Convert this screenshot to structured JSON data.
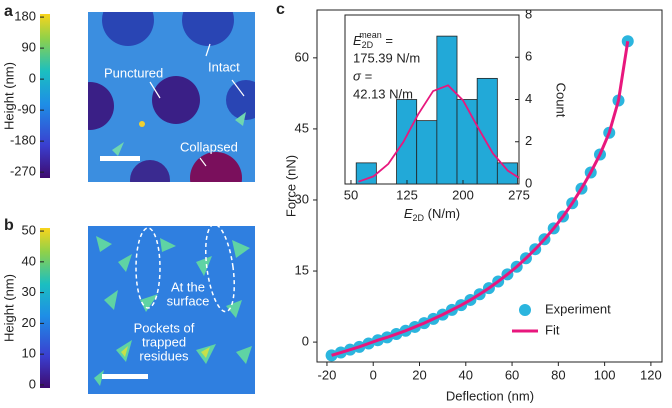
{
  "panel_a": {
    "label": "a",
    "colorbar_label": "Height (nm)",
    "colorbar_lim": [
      -287,
      189
    ],
    "colorbar_ticks": [
      180,
      90,
      0,
      -90,
      -180,
      -270
    ],
    "annotations": [
      "Punctured",
      "Intact",
      "Collapsed"
    ]
  },
  "panel_b": {
    "label": "b",
    "colorbar_label": "Height (nm)",
    "colorbar_lim": [
      -1,
      51
    ],
    "colorbar_ticks": [
      50,
      40,
      30,
      20,
      10,
      0
    ],
    "annotations": [
      [
        "At the",
        "surface"
      ],
      [
        "Pockets of",
        "trapped",
        "residues"
      ]
    ]
  },
  "chart_data": [
    {
      "type": "scatter",
      "panel_label": "c",
      "xlabel": "Deflection (nm)",
      "ylabel": "Force (nN)",
      "x": [
        -18,
        -14,
        -10,
        -6,
        -2,
        2,
        6,
        10,
        14,
        18,
        22,
        26,
        30,
        34,
        38,
        42,
        46,
        50,
        54,
        58,
        62,
        66,
        70,
        74,
        78,
        82,
        86,
        90,
        94,
        98,
        102,
        106,
        110
      ],
      "series": [
        {
          "name": "Experiment",
          "color": "#2bb5de",
          "style": "markers",
          "values": [
            -2.8,
            -2.2,
            -1.6,
            -1.0,
            -0.3,
            0.4,
            1.0,
            1.7,
            2.4,
            3.2,
            4.0,
            4.9,
            5.8,
            6.8,
            7.8,
            8.9,
            10.1,
            11.4,
            12.8,
            14.3,
            15.9,
            17.7,
            19.6,
            21.7,
            24.0,
            26.5,
            29.3,
            32.4,
            35.8,
            39.6,
            44.2,
            51.0,
            63.5
          ]
        },
        {
          "name": "Fit",
          "color": "#e8177d",
          "style": "line",
          "values": [
            -2.8,
            -2.2,
            -1.6,
            -1.0,
            -0.3,
            0.4,
            1.0,
            1.7,
            2.4,
            3.2,
            4.0,
            4.9,
            5.8,
            6.8,
            7.8,
            8.9,
            10.1,
            11.4,
            12.8,
            14.3,
            15.9,
            17.7,
            19.6,
            21.7,
            24.0,
            26.5,
            29.3,
            32.4,
            35.8,
            39.6,
            44.2,
            51.0,
            63.5
          ]
        }
      ],
      "xlim": [
        -24.3,
        124.8
      ],
      "ylim": [
        -4.2,
        70.1
      ],
      "xticks": [
        -20,
        0,
        20,
        40,
        60,
        80,
        100,
        120
      ],
      "yticks": [
        0,
        15,
        30,
        45,
        60
      ],
      "legend": "lower right"
    },
    {
      "type": "histogram",
      "xlabel": "E",
      "xlabel_sub": "2D",
      "xlabel_unit": " (N/m)",
      "ylabel": "Count",
      "bins": [
        57,
        84,
        111,
        138,
        165,
        192,
        219,
        246,
        273
      ],
      "values": [
        1,
        0,
        4,
        3,
        7,
        4,
        5,
        1
      ],
      "color": "#22a9d8",
      "fit": {
        "color": "#e8177d",
        "x": [
          60,
          80,
          100,
          120,
          140,
          160,
          180,
          200,
          220,
          240,
          260,
          275
        ],
        "values": [
          0.11,
          0.36,
          0.95,
          1.98,
          3.3,
          4.4,
          4.67,
          3.96,
          2.68,
          1.45,
          0.63,
          0.29
        ]
      },
      "xlim": [
        42,
        275
      ],
      "ylim": [
        0,
        8
      ],
      "xticks": [
        50,
        125,
        200,
        275
      ],
      "yticks": [
        0,
        2,
        4,
        6,
        8
      ],
      "annotation": {
        "symbol": "E",
        "sub": "2D",
        "sup": "mean",
        "eq": " =",
        "mean": "175.39 N/m",
        "sigma": "σ =",
        "sigma_value": "42.13 N/m"
      }
    }
  ]
}
